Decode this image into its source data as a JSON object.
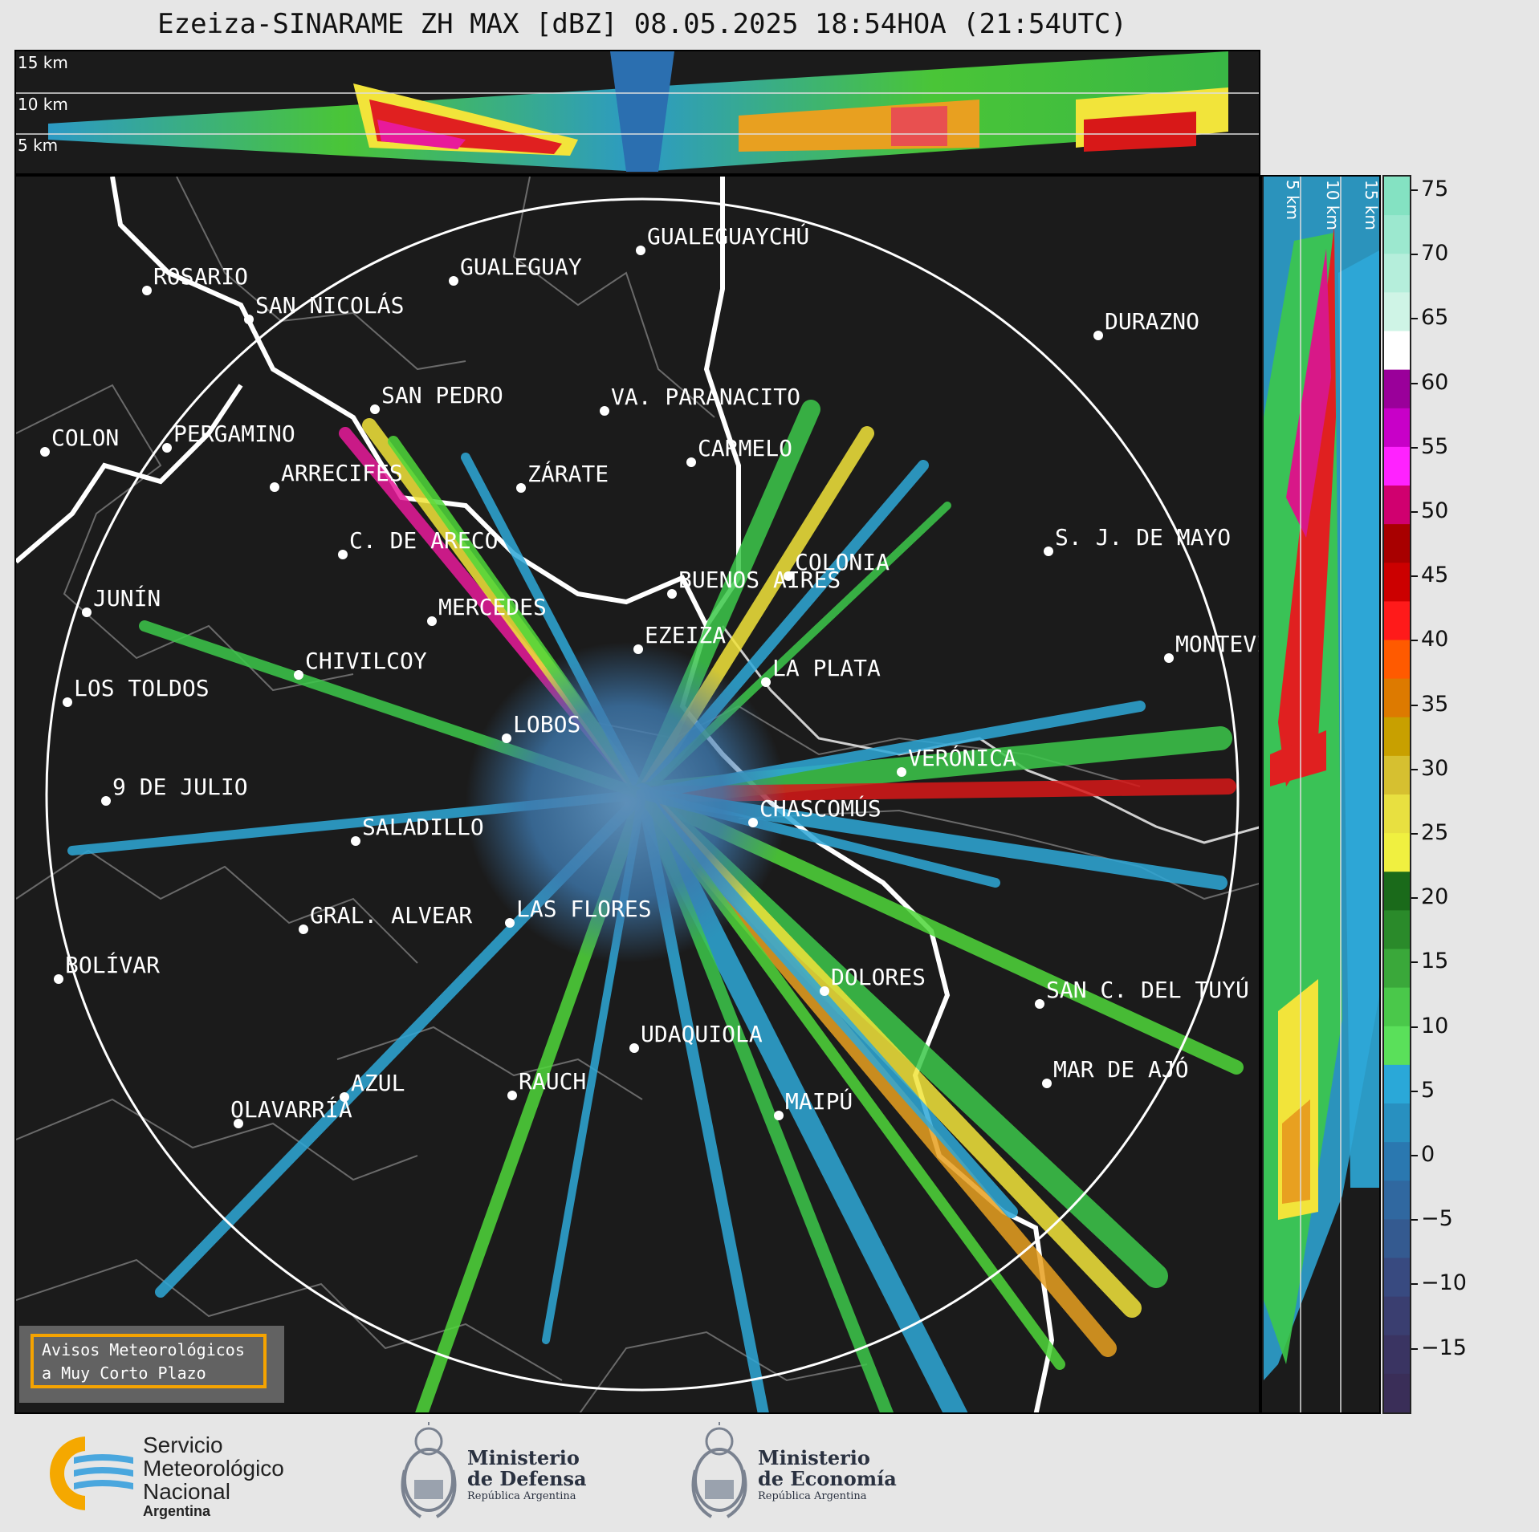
{
  "title": "Ezeiza-SINARAME ZH MAX [dBZ] 08.05.2025 18:54HOA (21:54UTC)",
  "top_panel": {
    "altitudes": [
      "15 km",
      "10 km",
      "5 km"
    ]
  },
  "side_panel": {
    "altitudes": [
      "5 km",
      "10 km",
      "15 km"
    ]
  },
  "colorbar": {
    "unit": "dBZ",
    "ticks": [
      "75",
      "70",
      "65",
      "60",
      "55",
      "50",
      "45",
      "40",
      "35",
      "30",
      "25",
      "20",
      "15",
      "10",
      "5",
      "0",
      "−5",
      "−10",
      "−15"
    ],
    "range": [
      -20,
      77
    ]
  },
  "radar": {
    "name": "EZEIZA",
    "range_ring": "single circle"
  },
  "cities": [
    {
      "name": "ROSARIO"
    },
    {
      "name": "GUALEGUAYCHÚ"
    },
    {
      "name": "GUALEGUAY"
    },
    {
      "name": "SAN NICOLÁS"
    },
    {
      "name": "DURAZNO"
    },
    {
      "name": "SAN PEDRO"
    },
    {
      "name": "VA. PARANACITO"
    },
    {
      "name": "COLON"
    },
    {
      "name": "PERGAMINO"
    },
    {
      "name": "CARMELO"
    },
    {
      "name": "ARRECIFES"
    },
    {
      "name": "ZÁRATE"
    },
    {
      "name": "C. DE ARECO"
    },
    {
      "name": "S. J. DE MAYO"
    },
    {
      "name": "COLONIA"
    },
    {
      "name": "JUNÍN"
    },
    {
      "name": "BUENOS AIRES"
    },
    {
      "name": "MERCEDES"
    },
    {
      "name": "EZEIZA"
    },
    {
      "name": "MONTEVIDEO"
    },
    {
      "name": "CHIVILCOY"
    },
    {
      "name": "LA PLATA"
    },
    {
      "name": "LOS TOLDOS"
    },
    {
      "name": "LOBOS"
    },
    {
      "name": "VERÓNICA"
    },
    {
      "name": "9 DE JULIO"
    },
    {
      "name": "CHASCOMÚS"
    },
    {
      "name": "SALADILLO"
    },
    {
      "name": "GRAL. ALVEAR"
    },
    {
      "name": "LAS FLORES"
    },
    {
      "name": "BOLÍVAR"
    },
    {
      "name": "DOLORES"
    },
    {
      "name": "SAN C. DEL TUYÚ"
    },
    {
      "name": "UDAQUIOLA"
    },
    {
      "name": "MAR DE AJÓ"
    },
    {
      "name": "AZUL"
    },
    {
      "name": "RAUCH"
    },
    {
      "name": "OLAVARRÍA"
    },
    {
      "name": "MAIPÚ"
    }
  ],
  "aviso": {
    "line1": "Avisos Meteorológicos",
    "line2": "a Muy Corto Plazo"
  },
  "logos": {
    "smn": {
      "line1": "Servicio",
      "line2": "Meteorológico",
      "line3": "Nacional",
      "line4": "Argentina"
    },
    "defensa": {
      "line1": "Ministerio",
      "line2": "de Defensa",
      "line3": "República Argentina"
    },
    "economia": {
      "line1": "Ministerio",
      "line2": "de Economía",
      "line3": "República Argentina"
    }
  }
}
